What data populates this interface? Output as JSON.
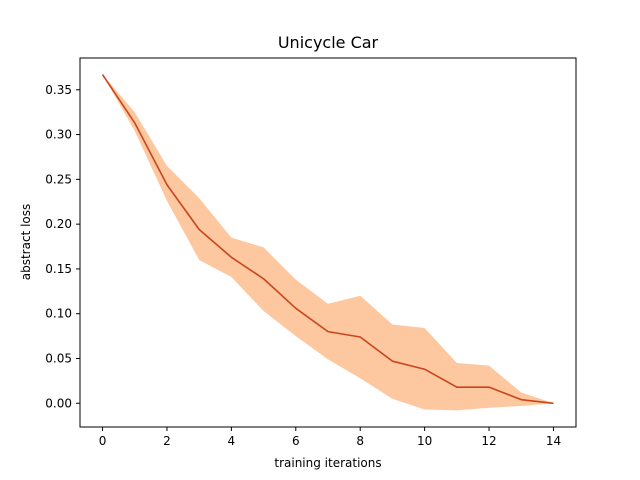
{
  "chart_data": {
    "type": "line",
    "title": "Unicycle Car",
    "xlabel": "training iterations",
    "ylabel": "abstract loss",
    "xlim": [
      -0.7,
      14.7
    ],
    "ylim": [
      -0.0265,
      0.3855
    ],
    "x_ticks": [
      0,
      2,
      4,
      6,
      8,
      10,
      12,
      14
    ],
    "y_ticks": [
      0.0,
      0.05,
      0.1,
      0.15,
      0.2,
      0.25,
      0.3,
      0.35
    ],
    "x_tick_labels": [
      "0",
      "2",
      "4",
      "6",
      "8",
      "10",
      "12",
      "14"
    ],
    "y_tick_labels": [
      "0.00",
      "0.05",
      "0.10",
      "0.15",
      "0.20",
      "0.25",
      "0.30",
      "0.35"
    ],
    "grid": false,
    "x": [
      0,
      1,
      2,
      3,
      4,
      5,
      6,
      7,
      8,
      9,
      10,
      11,
      12,
      13,
      14
    ],
    "series": [
      {
        "values": [
          0.367,
          0.313,
          0.244,
          0.194,
          0.163,
          0.139,
          0.106,
          0.08,
          0.074,
          0.047,
          0.038,
          0.018,
          0.018,
          0.004,
          0.0
        ],
        "lower": [
          0.367,
          0.304,
          0.226,
          0.16,
          0.141,
          0.103,
          0.075,
          0.049,
          0.028,
          0.005,
          -0.007,
          -0.008,
          -0.005,
          -0.003,
          0.0
        ],
        "upper": [
          0.367,
          0.325,
          0.265,
          0.229,
          0.185,
          0.174,
          0.138,
          0.111,
          0.12,
          0.088,
          0.084,
          0.045,
          0.042,
          0.012,
          0.0
        ],
        "line_color": "#c9461c",
        "band_color": "#fdc89f"
      }
    ]
  }
}
